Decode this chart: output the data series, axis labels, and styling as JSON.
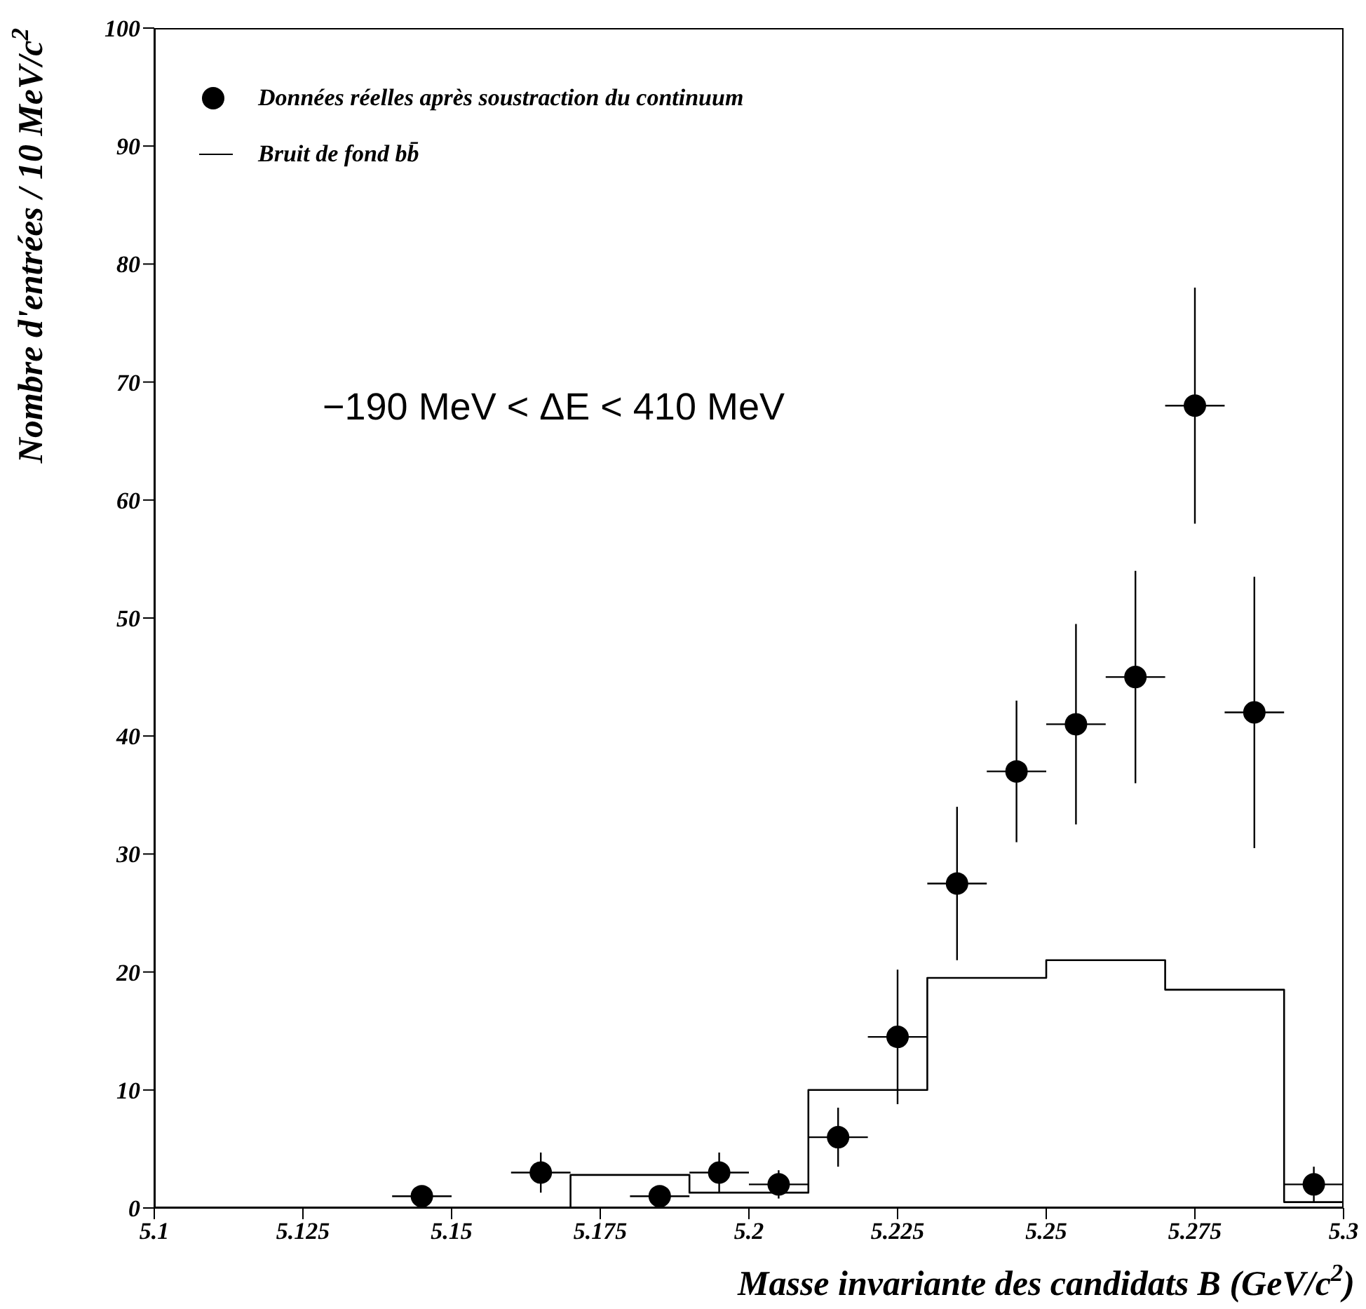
{
  "chart_data": {
    "type": "scatter",
    "xlabel": "Masse invariante des candidats B (GeV/c$^{2}$)",
    "ylabel": "Nombre d'entrées / 10 MeV/c$^{2}$",
    "annotations": [
      "−190 MeV < ΔE < 410 MeV"
    ],
    "xlim": [
      5.1,
      5.3
    ],
    "xticks": [
      5.1,
      5.125,
      5.15,
      5.175,
      5.2,
      5.225,
      5.25,
      5.275,
      5.3
    ],
    "ylim": [
      0,
      100
    ],
    "yticks": [
      0,
      10,
      20,
      30,
      40,
      50,
      60,
      70,
      80,
      90,
      100
    ],
    "legend": "top left",
    "marker": "circle",
    "series": [
      {
        "name": "Données réelles après soustraction du continuum",
        "color": "#000000",
        "x": [
          5.145,
          5.165,
          5.185,
          5.195,
          5.205,
          5.215,
          5.225,
          5.235,
          5.245,
          5.255,
          5.265,
          5.275,
          5.285,
          5.295
        ],
        "values": [
          1,
          3,
          1,
          3,
          2,
          6,
          14.5,
          27.5,
          37,
          41,
          45,
          68,
          42,
          2
        ],
        "errors": [
          null,
          1.7,
          null,
          1.7,
          1.2,
          2.5,
          5.7,
          6.5,
          6,
          8.5,
          9,
          10,
          11.5,
          1.5
        ],
        "xerrors": [
          0.005,
          0.005,
          0.005,
          0.005,
          0.005,
          0.005,
          0.005,
          0.005,
          0.005,
          0.005,
          0.005,
          0.005,
          0.005,
          0.005
        ]
      },
      {
        "name": "Bruit de fond bb̄",
        "type": "histogram",
        "color": "#000000",
        "bins": [
          5.1,
          5.11,
          5.12,
          5.13,
          5.14,
          5.15,
          5.16,
          5.17,
          5.18,
          5.19,
          5.2,
          5.21,
          5.22,
          5.23,
          5.24,
          5.25,
          5.26,
          5.27,
          5.28,
          5.29,
          5.3
        ],
        "values": [
          0,
          0,
          0,
          0,
          0,
          0,
          0,
          2.8,
          2.8,
          1.3,
          1.3,
          10,
          10,
          19.5,
          19.5,
          21,
          21,
          18.5,
          18.5,
          0.5
        ]
      }
    ]
  }
}
